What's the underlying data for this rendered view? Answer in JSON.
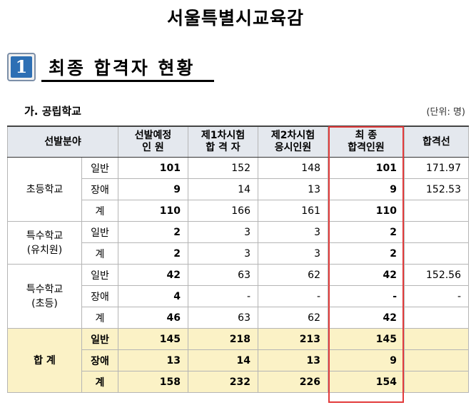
{
  "doc": {
    "title": "서울특별시교육감",
    "section_number": "1",
    "section_title": "최종 합격자 현황",
    "subtitle": "가. 공립학교",
    "unit": "(단위: 명)"
  },
  "table": {
    "headers": {
      "category": "선발분야",
      "planned": "선발예정\n인    원",
      "first": "제1차시험\n합 격 자",
      "second": "제2차시험\n응시인원",
      "final": "최      종\n합격인원",
      "cutoff": "합격선"
    },
    "groups": [
      {
        "name": "초등학교",
        "rows": [
          {
            "sub": "일반",
            "planned": "101",
            "first": "152",
            "second": "148",
            "final": "101",
            "cutoff": "171.97"
          },
          {
            "sub": "장애",
            "planned": "9",
            "first": "14",
            "second": "13",
            "final": "9",
            "cutoff": "152.53"
          },
          {
            "sub": "계",
            "planned": "110",
            "first": "166",
            "second": "161",
            "final": "110",
            "cutoff": ""
          }
        ]
      },
      {
        "name": "특수학교\n(유치원)",
        "rows": [
          {
            "sub": "일반",
            "planned": "2",
            "first": "3",
            "second": "3",
            "final": "2",
            "cutoff": ""
          },
          {
            "sub": "계",
            "planned": "2",
            "first": "3",
            "second": "3",
            "final": "2",
            "cutoff": ""
          }
        ]
      },
      {
        "name": "특수학교\n(초등)",
        "rows": [
          {
            "sub": "일반",
            "planned": "42",
            "first": "63",
            "second": "62",
            "final": "42",
            "cutoff": "152.56"
          },
          {
            "sub": "장애",
            "planned": "4",
            "first": "-",
            "second": "-",
            "final": "-",
            "cutoff": "-"
          },
          {
            "sub": "계",
            "planned": "46",
            "first": "63",
            "second": "62",
            "final": "42",
            "cutoff": ""
          }
        ]
      }
    ],
    "total": {
      "name": "합  계",
      "rows": [
        {
          "sub": "일반",
          "planned": "145",
          "first": "218",
          "second": "213",
          "final": "145",
          "cutoff": ""
        },
        {
          "sub": "장애",
          "planned": "13",
          "first": "14",
          "second": "13",
          "final": "9",
          "cutoff": ""
        },
        {
          "sub": "계",
          "planned": "158",
          "first": "232",
          "second": "226",
          "final": "154",
          "cutoff": ""
        }
      ]
    }
  },
  "colors": {
    "header_bg": "#e4e8ee",
    "total_bg": "#fbf2c6",
    "highlight_border": "#e23b3b",
    "badge_blue": "#2d6fb4"
  }
}
